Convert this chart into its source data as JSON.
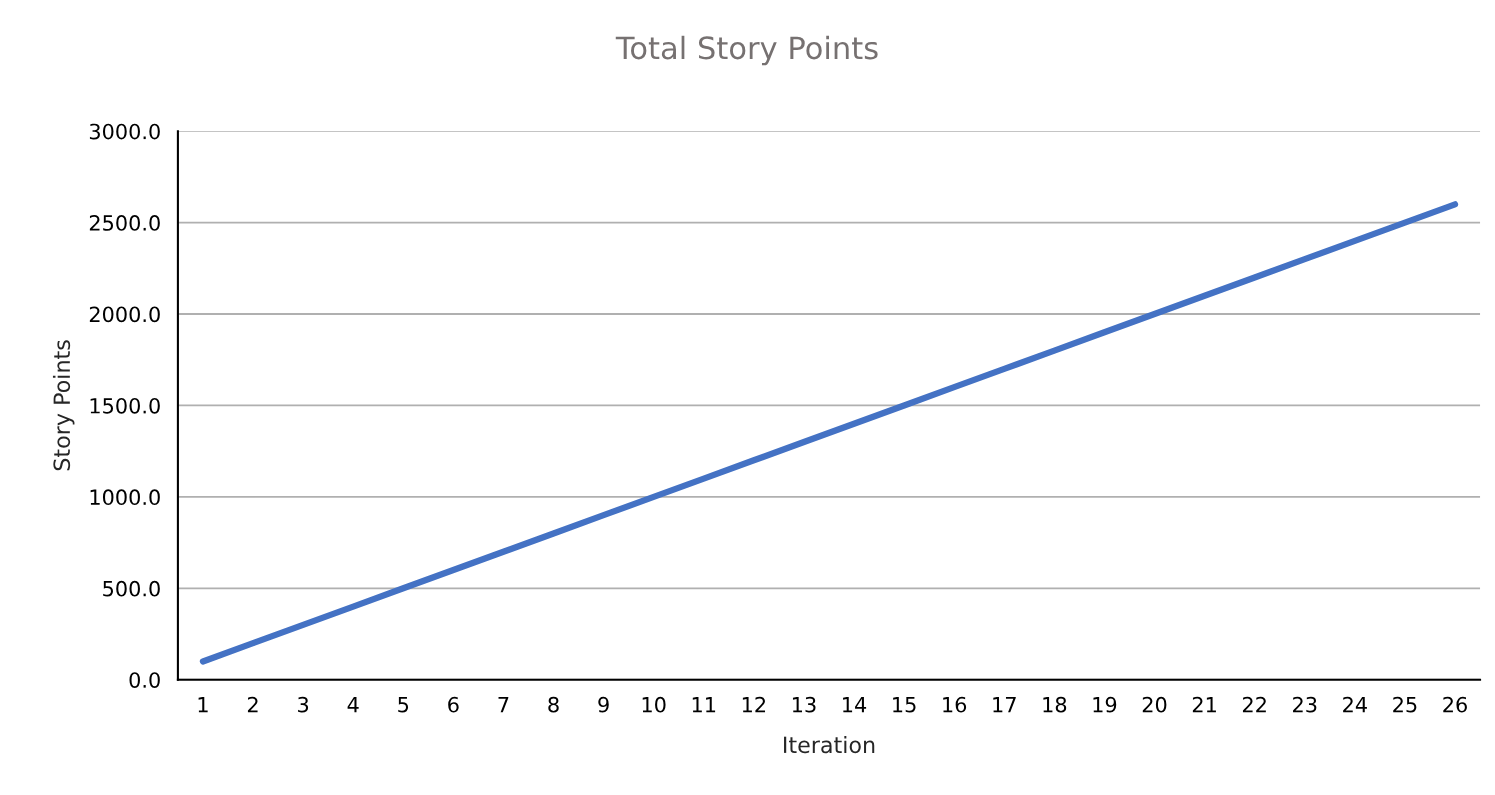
{
  "chart_data": {
    "type": "line",
    "title": "Total Story Points",
    "xlabel": "Iteration",
    "ylabel": "Story Points",
    "categories": [
      "1",
      "2",
      "3",
      "4",
      "5",
      "6",
      "7",
      "8",
      "9",
      "10",
      "11",
      "12",
      "13",
      "14",
      "15",
      "16",
      "17",
      "18",
      "19",
      "20",
      "21",
      "22",
      "23",
      "24",
      "25",
      "26"
    ],
    "series": [
      {
        "color": "#4472c4",
        "values": [
          100,
          200,
          300,
          400,
          500,
          600,
          700,
          800,
          900,
          1000,
          1100,
          1200,
          1300,
          1400,
          1500,
          1600,
          1700,
          1800,
          1900,
          2000,
          2100,
          2200,
          2300,
          2400,
          2500,
          2600
        ]
      }
    ],
    "ylim": [
      0,
      3000
    ],
    "yticks": [
      {
        "value": 0,
        "label": "0.0"
      },
      {
        "value": 500,
        "label": "500.0"
      },
      {
        "value": 1000,
        "label": "1000.0"
      },
      {
        "value": 1500,
        "label": "1500.0"
      },
      {
        "value": 2000,
        "label": "2000.0"
      },
      {
        "value": 2500,
        "label": "2500.0"
      },
      {
        "value": 3000,
        "label": "3000.0"
      }
    ],
    "grid": "y",
    "legend": false,
    "marker": "none",
    "line_style": "solid"
  }
}
